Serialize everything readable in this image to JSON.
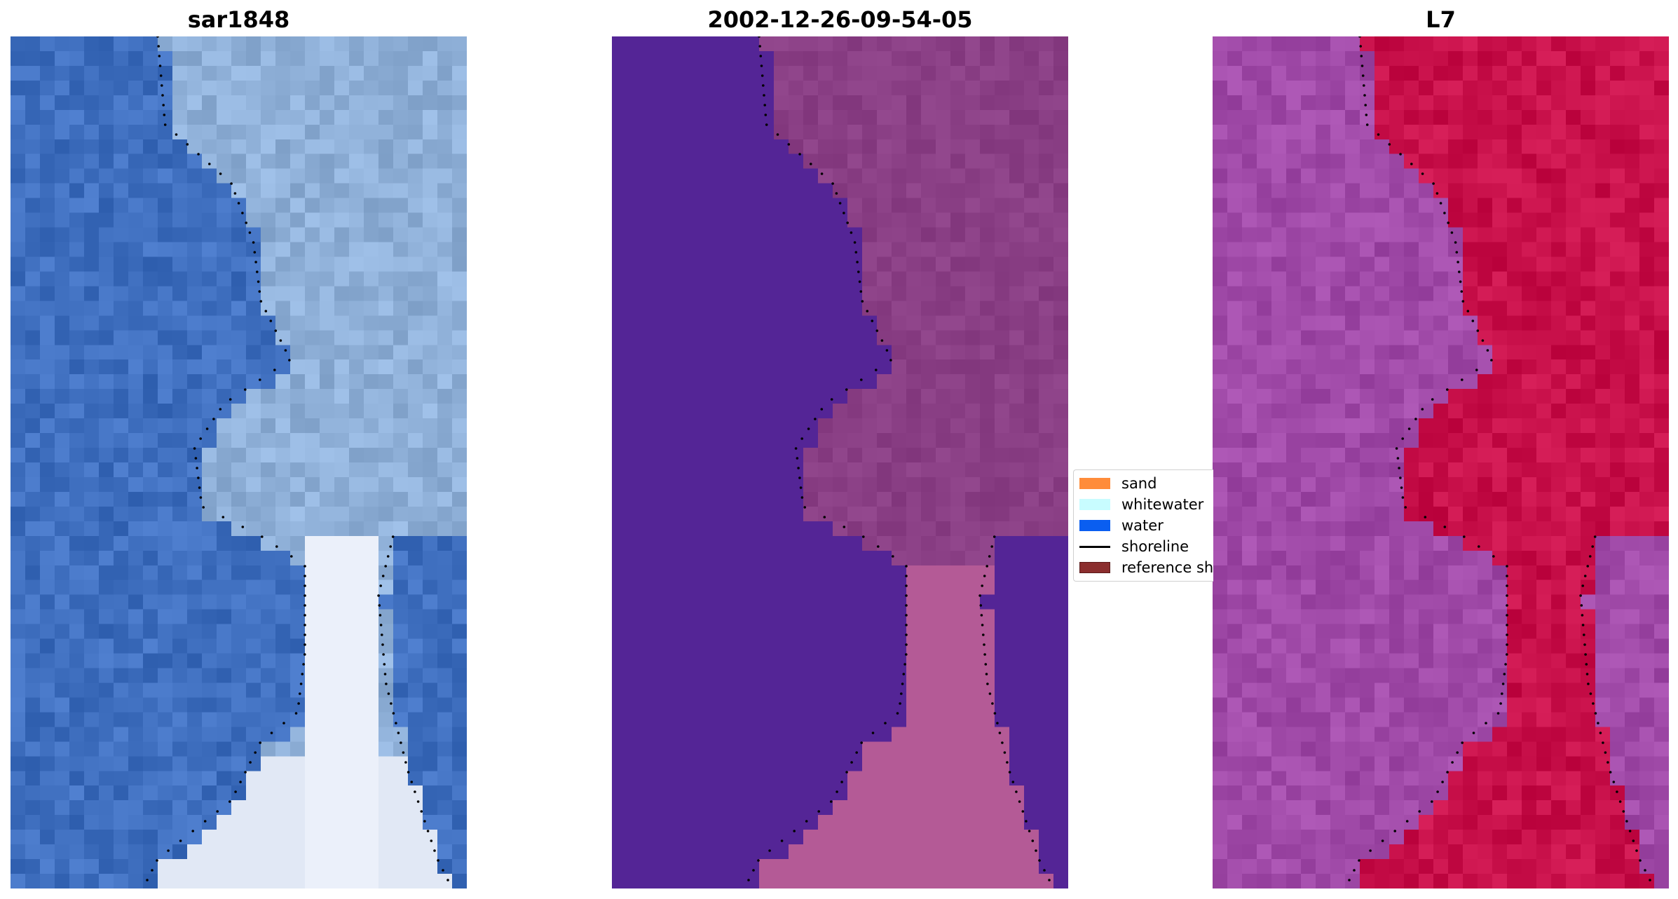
{
  "panels": [
    {
      "title": "sar1848"
    },
    {
      "title": "2002-12-26-09-54-05"
    },
    {
      "title": "L7"
    }
  ],
  "legend": {
    "items": [
      {
        "label": "sand",
        "color": "#ff8c3a",
        "kind": "patch"
      },
      {
        "label": "whitewater",
        "color": "#c8fcff",
        "kind": "patch"
      },
      {
        "label": "water",
        "color": "#0a5ef0",
        "kind": "patch"
      },
      {
        "label": "shoreline",
        "color": "#000000",
        "kind": "line"
      },
      {
        "label": "reference sh",
        "color": "#8b2e2e",
        "kind": "patch"
      }
    ]
  },
  "colors": {
    "water_class": "#542596",
    "land_class": "#8a3f85",
    "rgb_water": "#3f6fbf",
    "rgb_land": "#8fb0d8",
    "l7_water": "#a04aa8",
    "l7_land": "#c8104a"
  }
}
